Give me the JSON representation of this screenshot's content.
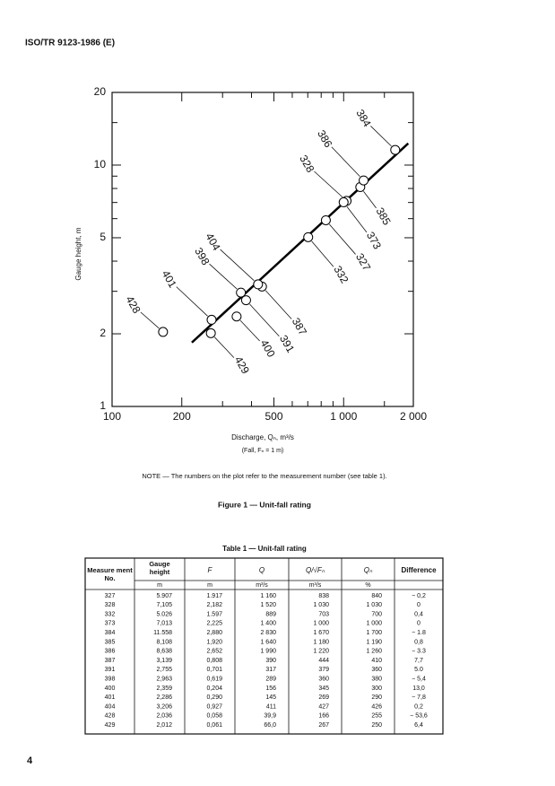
{
  "header": {
    "title": "ISO/TR 9123-1986 (E)"
  },
  "chart_data": {
    "type": "scatter",
    "log_x": true,
    "log_y": true,
    "ylabel": "Gauge height, m",
    "xlabel": "Discharge, Qₙ, m³/s",
    "xlabel2": "(Fall, Fₙ = 1 m)",
    "xlim": [
      100,
      2000
    ],
    "ylim": [
      1,
      20
    ],
    "xticks": [
      100,
      200,
      500,
      {
        "value": 1000,
        "label": "1 000"
      },
      {
        "value": 2000,
        "label": "2 000"
      }
    ],
    "yticks": [
      1,
      2,
      5,
      10,
      20
    ],
    "xminorticks": [
      300,
      400,
      600,
      700,
      800,
      900,
      1500
    ],
    "yminorticks": [
      3,
      4,
      6,
      7,
      8,
      9,
      15
    ],
    "color": "#000000",
    "point_labels": [
      "327",
      "328",
      "332",
      "373",
      "384",
      "385",
      "386",
      "387",
      "391",
      "398",
      "400",
      "401",
      "404",
      "428",
      "429"
    ],
    "x": [
      838,
      1030,
      703,
      1000,
      1670,
      1180,
      1220,
      444,
      379,
      360,
      345,
      269,
      427,
      166,
      267
    ],
    "values": [
      5.907,
      7.105,
      5.026,
      7.013,
      11.558,
      8.108,
      8.638,
      3.139,
      2.755,
      2.963,
      2.359,
      2.286,
      3.206,
      2.036,
      2.012
    ],
    "fit_line": {
      "x": [
        221,
        1901
      ],
      "values": [
        1.84,
        12.3
      ]
    }
  },
  "note": "NOTE — The numbers on the plot refer to the measurement number (see table 1).",
  "figure_caption": "Figure 1 — Unit-fall rating",
  "table": {
    "caption": "Table 1 — Unit-fall rating",
    "headers": [
      "Measure ment No.",
      "Gauge height",
      "F",
      "Q",
      "Q/√Fₙ",
      "Qₙ",
      "Difference"
    ],
    "units": [
      "m",
      "m",
      "m³/s",
      "m³/s",
      "%"
    ],
    "rows": [
      [
        "327",
        "5.907",
        "1.917",
        "1 160",
        "838",
        "840",
        "− 0,2"
      ],
      [
        "328",
        "7,105",
        "2,182",
        "1 520",
        "1 030",
        "1 030",
        "0"
      ],
      [
        "332",
        "5.026",
        "1.597",
        "889",
        "703",
        "700",
        "0,4"
      ],
      [
        "373",
        "7,013",
        "2,225",
        "1 400",
        "1 000",
        "1 000",
        "0"
      ],
      [
        "384",
        "11.558",
        "2,880",
        "2 830",
        "1 670",
        "1 700",
        "− 1.8"
      ],
      [
        "385",
        "8,108",
        "1,920",
        "1 640",
        "1 180",
        "1 190",
        "0,8"
      ],
      [
        "386",
        "8,638",
        "2,652",
        "1 990",
        "1 220",
        "1 260",
        "− 3.3"
      ],
      [
        "387",
        "3,139",
        "0,808",
        "390",
        "444",
        "410",
        "7,7"
      ],
      [
        "391",
        "2,755",
        "0,701",
        "317",
        "379",
        "360",
        "5.0"
      ],
      [
        "398",
        "2,963",
        "0,619",
        "289",
        "360",
        "380",
        "− 5,4"
      ],
      [
        "400",
        "2,359",
        "0,204",
        "156",
        "345",
        "300",
        "13,0"
      ],
      [
        "401",
        "2,286",
        "0,290",
        "145",
        "269",
        "290",
        "− 7,8"
      ],
      [
        "404",
        "3,206",
        "0,927",
        "411",
        "427",
        "426",
        "0,2"
      ],
      [
        "428",
        "2,036",
        "0,058",
        "39,9",
        "166",
        "255",
        "− 53,6"
      ],
      [
        "429",
        "2,012",
        "0,061",
        "66,0",
        "267",
        "250",
        "6,4"
      ]
    ]
  },
  "page_number": "4"
}
